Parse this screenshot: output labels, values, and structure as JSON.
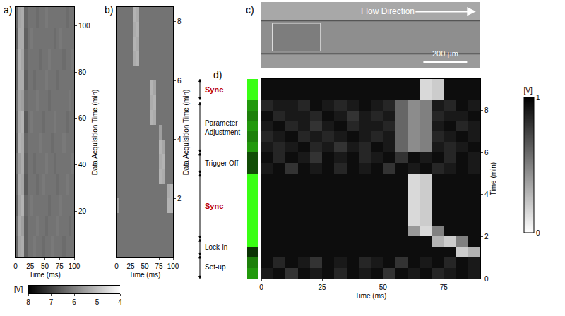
{
  "chart_data": [
    {
      "type": "heatmap",
      "label": "a)",
      "x": [
        2.5,
        7.5,
        12.5,
        17.5,
        22.5,
        27.5,
        32.5,
        37.5,
        42.5,
        47.5,
        52.5,
        57.5,
        62.5,
        67.5,
        72.5,
        77.5,
        82.5,
        87.5,
        92.5,
        97.5
      ],
      "y": [
        4.5,
        13.5,
        22.5,
        31.5,
        40.5,
        49.5,
        58.5,
        67.5,
        76.5,
        85.5,
        94.5,
        103.5
      ],
      "z": [
        [
          6.4,
          5.4,
          5.3,
          6.5,
          6.2,
          6.2,
          6.1,
          6.2,
          6.2,
          6.3,
          6.2,
          6.2,
          6.1,
          6.2,
          6.2,
          6.2,
          6.3,
          6.2,
          6.2,
          6.2
        ],
        [
          6.3,
          5.3,
          5.5,
          6.5,
          6.2,
          6.2,
          6.2,
          6.1,
          6.2,
          6.2,
          6.3,
          6.2,
          6.2,
          6.2,
          6.1,
          6.2,
          6.2,
          6.2,
          6.3,
          6.2
        ],
        [
          6.5,
          5.4,
          5.2,
          6.4,
          6.2,
          6.1,
          6.2,
          6.2,
          6.2,
          6.2,
          6.2,
          6.3,
          6.2,
          6.2,
          6.2,
          6.1,
          6.2,
          6.2,
          6.2,
          6.2
        ],
        [
          6.4,
          5.3,
          5.4,
          6.6,
          6.2,
          6.2,
          6.2,
          6.3,
          6.2,
          6.1,
          6.2,
          6.2,
          6.2,
          6.2,
          6.3,
          6.2,
          6.2,
          6.1,
          6.2,
          6.2
        ],
        [
          6.2,
          5.5,
          5.3,
          6.5,
          6.2,
          6.2,
          6.3,
          6.2,
          6.2,
          6.2,
          6.1,
          6.2,
          6.2,
          6.3,
          6.2,
          6.2,
          6.2,
          6.2,
          6.2,
          6.1
        ],
        [
          6.4,
          5.2,
          5.3,
          6.4,
          6.2,
          6.2,
          6.2,
          6.2,
          6.1,
          6.2,
          6.2,
          6.2,
          6.3,
          6.2,
          6.2,
          6.2,
          6.1,
          6.2,
          6.2,
          6.2
        ],
        [
          6.3,
          5.3,
          5.2,
          6.6,
          6.2,
          6.1,
          6.2,
          6.2,
          6.2,
          6.3,
          6.2,
          6.2,
          6.2,
          6.1,
          6.2,
          6.2,
          6.2,
          6.3,
          6.2,
          6.2
        ],
        [
          6.2,
          5.4,
          5.5,
          6.3,
          6.2,
          6.2,
          6.2,
          6.1,
          6.2,
          6.2,
          6.2,
          6.3,
          6.2,
          6.2,
          6.2,
          6.2,
          6.2,
          6.2,
          6.1,
          6.2
        ],
        [
          6.4,
          5.3,
          5.3,
          6.5,
          6.2,
          6.2,
          6.3,
          6.2,
          6.2,
          6.2,
          6.1,
          6.2,
          6.2,
          6.2,
          6.3,
          6.2,
          6.2,
          6.2,
          6.2,
          6.2
        ],
        [
          6.3,
          5.2,
          5.4,
          6.4,
          6.2,
          6.2,
          6.2,
          6.2,
          6.3,
          6.2,
          6.2,
          6.1,
          6.2,
          6.2,
          6.2,
          6.2,
          6.3,
          6.2,
          6.2,
          6.1
        ],
        [
          6.5,
          5.3,
          5.3,
          6.5,
          6.2,
          6.1,
          6.2,
          6.2,
          6.2,
          6.2,
          6.2,
          6.2,
          6.2,
          6.3,
          6.2,
          6.1,
          6.2,
          6.2,
          6.2,
          6.2
        ],
        [
          6.4,
          5.4,
          5.3,
          6.4,
          6.2,
          6.2,
          6.2,
          6.3,
          6.2,
          6.2,
          6.1,
          6.2,
          6.2,
          6.2,
          6.2,
          6.2,
          6.2,
          6.3,
          6.2,
          6.2
        ]
      ],
      "xlim": [
        0,
        100
      ],
      "xticks": [
        0,
        25,
        50,
        75,
        100
      ],
      "ylim": [
        0,
        108
      ],
      "yticks": [
        20,
        40,
        60,
        80,
        100
      ],
      "x_label": "Time (ms)",
      "y_label": "Data Acquisition Time (min)",
      "colorbar": {
        "range": [
          8,
          4
        ],
        "ticks": [
          8,
          7,
          6,
          5,
          4
        ],
        "label": "[V]"
      }
    },
    {
      "type": "heatmap",
      "label": "b)",
      "x": [
        2.5,
        7.5,
        12.5,
        17.5,
        22.5,
        27.5,
        32.5,
        37.5,
        42.5,
        47.5,
        52.5,
        57.5,
        62.5,
        67.5,
        72.5,
        77.5,
        82.5,
        87.5,
        92.5,
        97.5
      ],
      "y": [
        0.25,
        0.75,
        1.25,
        1.75,
        2.25,
        2.75,
        3.25,
        3.75,
        4.25,
        4.75,
        5.25,
        5.75,
        6.25,
        6.75,
        7.25,
        7.75,
        8.25
      ],
      "z": [
        [
          6.2,
          6.2,
          6.2,
          6.2,
          6.2,
          6.2,
          6.2,
          6.2,
          6.2,
          6.2,
          6.2,
          6.2,
          6.2,
          6.2,
          6.2,
          6.2,
          6.2,
          6.2,
          6.2,
          6.2
        ],
        [
          6.2,
          6.2,
          6.2,
          6.2,
          6.2,
          6.2,
          6.2,
          6.2,
          6.2,
          6.2,
          6.2,
          6.2,
          6.2,
          6.2,
          6.2,
          6.2,
          6.2,
          6.2,
          6.2,
          6.2
        ],
        [
          6.2,
          6.2,
          6.2,
          6.2,
          6.2,
          6.2,
          6.2,
          6.2,
          6.2,
          6.2,
          6.2,
          6.2,
          6.2,
          6.2,
          6.2,
          6.2,
          6.2,
          6.2,
          6.2,
          6.2
        ],
        [
          5.6,
          6.2,
          6.2,
          6.2,
          6.2,
          6.2,
          6.2,
          6.2,
          6.2,
          6.2,
          6.2,
          6.2,
          6.2,
          6.2,
          6.2,
          6.2,
          6.2,
          6.2,
          5.2,
          5.2
        ],
        [
          6.2,
          6.2,
          6.2,
          6.2,
          6.2,
          6.2,
          6.2,
          6.2,
          6.2,
          6.2,
          6.2,
          6.2,
          6.2,
          6.2,
          6.2,
          6.2,
          6.2,
          6.2,
          5.3,
          5.2
        ],
        [
          6.2,
          6.2,
          6.2,
          6.2,
          6.2,
          6.2,
          6.2,
          6.2,
          6.2,
          6.2,
          6.2,
          6.2,
          6.2,
          6.2,
          6.2,
          5.2,
          5.3,
          6.2,
          6.2,
          6.2
        ],
        [
          6.2,
          6.2,
          6.2,
          6.2,
          6.2,
          6.2,
          6.2,
          6.2,
          6.2,
          6.2,
          6.2,
          6.2,
          6.2,
          6.2,
          6.2,
          5.3,
          5.2,
          6.2,
          6.2,
          6.2
        ],
        [
          6.2,
          6.2,
          6.2,
          6.2,
          6.2,
          6.2,
          6.2,
          6.2,
          6.2,
          6.2,
          6.2,
          6.2,
          6.2,
          6.2,
          6.2,
          5.2,
          5.4,
          6.2,
          6.2,
          6.2
        ],
        [
          6.2,
          6.2,
          6.2,
          6.2,
          6.2,
          6.2,
          6.2,
          6.2,
          6.2,
          6.2,
          6.2,
          6.2,
          6.2,
          6.2,
          6.2,
          5.5,
          6.2,
          6.2,
          6.2,
          6.2
        ],
        [
          6.2,
          6.2,
          6.2,
          6.2,
          6.2,
          6.2,
          6.2,
          6.2,
          6.2,
          6.2,
          6.2,
          6.2,
          5.2,
          5.3,
          6.2,
          6.2,
          6.2,
          6.2,
          6.2,
          6.2
        ],
        [
          6.2,
          6.2,
          6.2,
          6.2,
          6.2,
          6.2,
          6.2,
          6.2,
          6.2,
          6.2,
          6.2,
          6.2,
          5.3,
          5.2,
          6.2,
          6.2,
          6.2,
          6.2,
          6.2,
          6.2
        ],
        [
          6.2,
          6.2,
          6.2,
          6.2,
          6.2,
          6.2,
          6.2,
          6.2,
          6.2,
          6.2,
          6.2,
          6.2,
          5.2,
          5.4,
          6.2,
          6.2,
          6.2,
          6.2,
          6.2,
          6.2
        ],
        [
          6.2,
          6.2,
          6.2,
          6.2,
          6.2,
          6.2,
          6.2,
          6.2,
          6.2,
          6.2,
          6.2,
          6.2,
          6.2,
          6.2,
          6.2,
          6.2,
          6.2,
          6.2,
          6.2,
          6.2
        ],
        [
          6.2,
          6.2,
          6.2,
          6.2,
          6.2,
          6.2,
          5.3,
          5.2,
          6.2,
          6.2,
          6.2,
          6.2,
          6.2,
          6.2,
          6.2,
          6.2,
          6.2,
          6.2,
          6.2,
          6.2
        ],
        [
          6.2,
          6.2,
          6.2,
          6.2,
          6.2,
          6.2,
          5.2,
          5.3,
          6.2,
          6.2,
          6.2,
          6.2,
          6.2,
          6.2,
          6.2,
          6.2,
          6.2,
          6.2,
          6.2,
          6.2
        ],
        [
          6.2,
          6.2,
          6.2,
          6.2,
          6.2,
          6.2,
          5.3,
          5.2,
          6.2,
          6.2,
          6.2,
          6.2,
          6.2,
          6.2,
          6.2,
          6.2,
          6.2,
          6.2,
          6.2,
          6.2
        ],
        [
          6.2,
          6.2,
          6.2,
          6.2,
          6.2,
          6.2,
          5.2,
          5.3,
          6.2,
          6.2,
          6.2,
          6.2,
          6.2,
          6.2,
          6.2,
          6.2,
          6.2,
          6.2,
          6.2,
          6.2
        ]
      ],
      "xlim": [
        0,
        100
      ],
      "xticks": [
        0,
        25,
        50,
        75,
        100
      ],
      "ylim": [
        0,
        8.5
      ],
      "yticks": [
        2,
        4,
        6,
        8
      ],
      "x_label": "Time (ms)",
      "y_label": "Data Acquisition Time (min)"
    },
    {
      "type": "image",
      "label": "c)",
      "annotations": [
        "Flow Direction"
      ],
      "scale_bar": "200 µm"
    },
    {
      "type": "heatmap",
      "label": "d)",
      "x": [
        2.5,
        7.5,
        12.5,
        17.5,
        22.5,
        27.5,
        32.5,
        37.5,
        42.5,
        47.5,
        52.5,
        57.5,
        62.5,
        67.5,
        72.5,
        77.5,
        82.5,
        87.5
      ],
      "y": [
        0.25,
        0.75,
        1.25,
        1.75,
        2.25,
        2.75,
        3.25,
        3.75,
        4.25,
        4.75,
        5.25,
        5.75,
        6.25,
        6.75,
        7.25,
        7.75,
        8.25,
        8.75,
        9.25
      ],
      "z": [
        [
          0.9,
          0.95,
          0.8,
          0.95,
          0.9,
          0.95,
          0.85,
          0.95,
          0.9,
          0.95,
          0.8,
          0.95,
          0.9,
          0.95,
          0.85,
          0.9,
          0.95,
          0.9
        ],
        [
          0.95,
          0.85,
          0.95,
          0.9,
          0.8,
          0.95,
          0.9,
          0.95,
          0.85,
          0.9,
          0.95,
          0.8,
          0.95,
          0.9,
          0.95,
          0.85,
          0.95,
          0.9
        ],
        [
          0.95,
          0.95,
          0.95,
          0.95,
          0.95,
          0.95,
          0.95,
          0.95,
          0.95,
          0.95,
          0.95,
          0.95,
          0.95,
          0.95,
          0.95,
          0.95,
          0.2,
          0.3
        ],
        [
          0.95,
          0.95,
          0.95,
          0.95,
          0.95,
          0.95,
          0.95,
          0.95,
          0.95,
          0.95,
          0.95,
          0.95,
          0.95,
          0.95,
          0.3,
          0.2,
          0.5,
          0.95
        ],
        [
          0.95,
          0.95,
          0.95,
          0.95,
          0.95,
          0.95,
          0.95,
          0.95,
          0.95,
          0.95,
          0.95,
          0.95,
          0.4,
          0.15,
          0.5,
          0.95,
          0.95,
          0.95
        ],
        [
          0.95,
          0.95,
          0.95,
          0.95,
          0.95,
          0.95,
          0.95,
          0.95,
          0.95,
          0.95,
          0.95,
          0.95,
          0.15,
          0.2,
          0.95,
          0.95,
          0.95,
          0.95
        ],
        [
          0.95,
          0.95,
          0.95,
          0.95,
          0.95,
          0.95,
          0.95,
          0.95,
          0.95,
          0.95,
          0.95,
          0.95,
          0.15,
          0.2,
          0.95,
          0.95,
          0.95,
          0.95
        ],
        [
          0.95,
          0.95,
          0.95,
          0.95,
          0.95,
          0.95,
          0.95,
          0.95,
          0.95,
          0.95,
          0.95,
          0.95,
          0.15,
          0.2,
          0.95,
          0.95,
          0.95,
          0.95
        ],
        [
          0.95,
          0.95,
          0.95,
          0.95,
          0.95,
          0.95,
          0.95,
          0.95,
          0.95,
          0.95,
          0.95,
          0.95,
          0.15,
          0.2,
          0.95,
          0.95,
          0.95,
          0.95
        ],
        [
          0.95,
          0.95,
          0.95,
          0.95,
          0.95,
          0.95,
          0.95,
          0.95,
          0.95,
          0.95,
          0.95,
          0.95,
          0.15,
          0.2,
          0.95,
          0.95,
          0.95,
          0.95
        ],
        [
          0.9,
          0.95,
          0.8,
          0.95,
          0.9,
          0.95,
          0.85,
          0.95,
          0.9,
          0.95,
          0.8,
          0.95,
          0.9,
          0.95,
          0.85,
          0.9,
          0.95,
          0.9
        ],
        [
          0.95,
          0.85,
          0.95,
          0.9,
          0.8,
          0.95,
          0.9,
          0.95,
          0.85,
          0.9,
          0.95,
          0.8,
          0.95,
          0.9,
          0.95,
          0.85,
          0.95,
          0.9
        ],
        [
          0.9,
          0.85,
          0.9,
          0.95,
          0.85,
          0.9,
          0.8,
          0.9,
          0.85,
          0.95,
          0.9,
          0.6,
          0.45,
          0.5,
          0.9,
          0.85,
          0.9,
          0.95
        ],
        [
          0.85,
          0.9,
          0.95,
          0.85,
          0.9,
          0.85,
          0.9,
          0.95,
          0.9,
          0.85,
          0.9,
          0.6,
          0.45,
          0.5,
          0.85,
          0.9,
          0.95,
          0.9
        ],
        [
          0.9,
          0.95,
          0.85,
          0.9,
          0.8,
          0.9,
          0.95,
          0.85,
          0.9,
          0.9,
          0.85,
          0.6,
          0.45,
          0.5,
          0.9,
          0.95,
          0.85,
          0.9
        ],
        [
          0.95,
          0.85,
          0.9,
          0.9,
          0.85,
          0.95,
          0.9,
          0.8,
          0.9,
          0.85,
          0.9,
          0.6,
          0.45,
          0.5,
          0.85,
          0.9,
          0.9,
          0.95
        ],
        [
          0.85,
          0.9,
          0.9,
          0.85,
          0.95,
          0.9,
          0.85,
          0.9,
          0.95,
          0.9,
          0.85,
          0.6,
          0.45,
          0.5,
          0.9,
          0.85,
          0.95,
          0.9
        ],
        [
          0.95,
          0.95,
          0.95,
          0.95,
          0.95,
          0.95,
          0.95,
          0.95,
          0.95,
          0.95,
          0.95,
          0.95,
          0.95,
          0.15,
          0.2,
          0.95,
          0.95,
          0.95
        ],
        [
          0.95,
          0.95,
          0.95,
          0.95,
          0.95,
          0.95,
          0.95,
          0.95,
          0.95,
          0.95,
          0.95,
          0.95,
          0.95,
          0.15,
          0.2,
          0.95,
          0.95,
          0.95
        ]
      ],
      "xlim": [
        0,
        90
      ],
      "xticks": [
        0,
        25,
        50,
        75
      ],
      "ylim": [
        0,
        9.5
      ],
      "yticks": [
        0,
        2,
        4,
        6,
        8
      ],
      "x_label": "Time (ms)",
      "y_label": "Time (min)",
      "colorbar": {
        "range": [
          0,
          1
        ],
        "ticks": [
          0,
          1
        ],
        "label": "[V]"
      },
      "sync_indicator": {
        "values": [
          0.6,
          0.5,
          0.2,
          1,
          1,
          1,
          1,
          1,
          1,
          1,
          0.3,
          0.3,
          0.6,
          0.5,
          0.6,
          0.5,
          0.6,
          1,
          1
        ],
        "range": [
          0,
          1
        ]
      },
      "annotations": [
        {
          "text": "Sync",
          "start": 8.5,
          "end": 9.5,
          "color": "#c00000"
        },
        {
          "text": "Parameter Adjustment",
          "start": 6,
          "end": 8.4,
          "color": "#000000"
        },
        {
          "text": "Trigger Off",
          "start": 5,
          "end": 6,
          "color": "#000000"
        },
        {
          "text": "Sync",
          "start": 1.9,
          "end": 5,
          "color": "#c00000"
        },
        {
          "text": "Lock-in",
          "start": 1.1,
          "end": 1.9,
          "color": "#000000"
        },
        {
          "text": "Set-up",
          "start": 0,
          "end": 1.1,
          "color": "#000000"
        }
      ]
    }
  ]
}
